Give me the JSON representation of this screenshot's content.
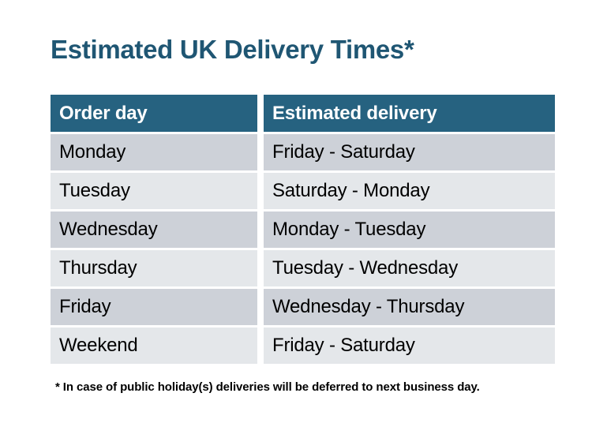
{
  "title": {
    "text": "Estimated UK Delivery Times*",
    "color": "#1F5673"
  },
  "table": {
    "header": {
      "columns": [
        "Order day",
        "Estimated delivery"
      ],
      "bg_color": "#266280",
      "text_color": "#FFFFFF"
    },
    "rows": [
      {
        "order_day": "Monday",
        "estimated_delivery": "Friday - Saturday"
      },
      {
        "order_day": "Tuesday",
        "estimated_delivery": "Saturday - Monday"
      },
      {
        "order_day": "Wednesday",
        "estimated_delivery": "Monday - Tuesday"
      },
      {
        "order_day": "Thursday",
        "estimated_delivery": "Tuesday - Wednesday"
      },
      {
        "order_day": "Friday",
        "estimated_delivery": "Wednesday - Thursday"
      },
      {
        "order_day": "Weekend",
        "estimated_delivery": "Friday - Saturday"
      }
    ],
    "row_colors": {
      "dark": "#CDD1D8",
      "light": "#E4E7EA"
    }
  },
  "footnote": {
    "text": "* In case of public holiday(s) deliveries will be deferred to next business day."
  }
}
